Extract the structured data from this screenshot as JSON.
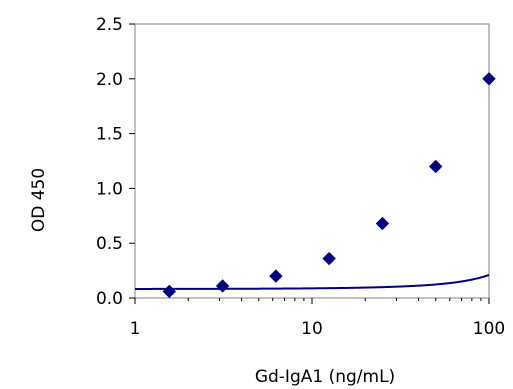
{
  "chart_data": {
    "type": "scatter",
    "title": "",
    "xlabel": "Gd-IgA1 (ng/mL)",
    "ylabel": "OD 450",
    "x_scale": "log",
    "xlim": [
      1,
      100
    ],
    "ylim": [
      0,
      2.5
    ],
    "x_ticks": [
      "1",
      "10",
      "100"
    ],
    "y_ticks": [
      "0.0",
      "0.5",
      "1.0",
      "1.5",
      "2.0",
      "2.5"
    ],
    "grid": false,
    "legend": "none",
    "series": [
      {
        "marker": "diamond",
        "line": "smooth",
        "color": "#000080",
        "x": [
          1.5625,
          3.125,
          6.25,
          12.5,
          25,
          50,
          100
        ],
        "y": [
          0.06,
          0.11,
          0.2,
          0.36,
          0.68,
          1.2,
          2.0
        ]
      }
    ]
  }
}
